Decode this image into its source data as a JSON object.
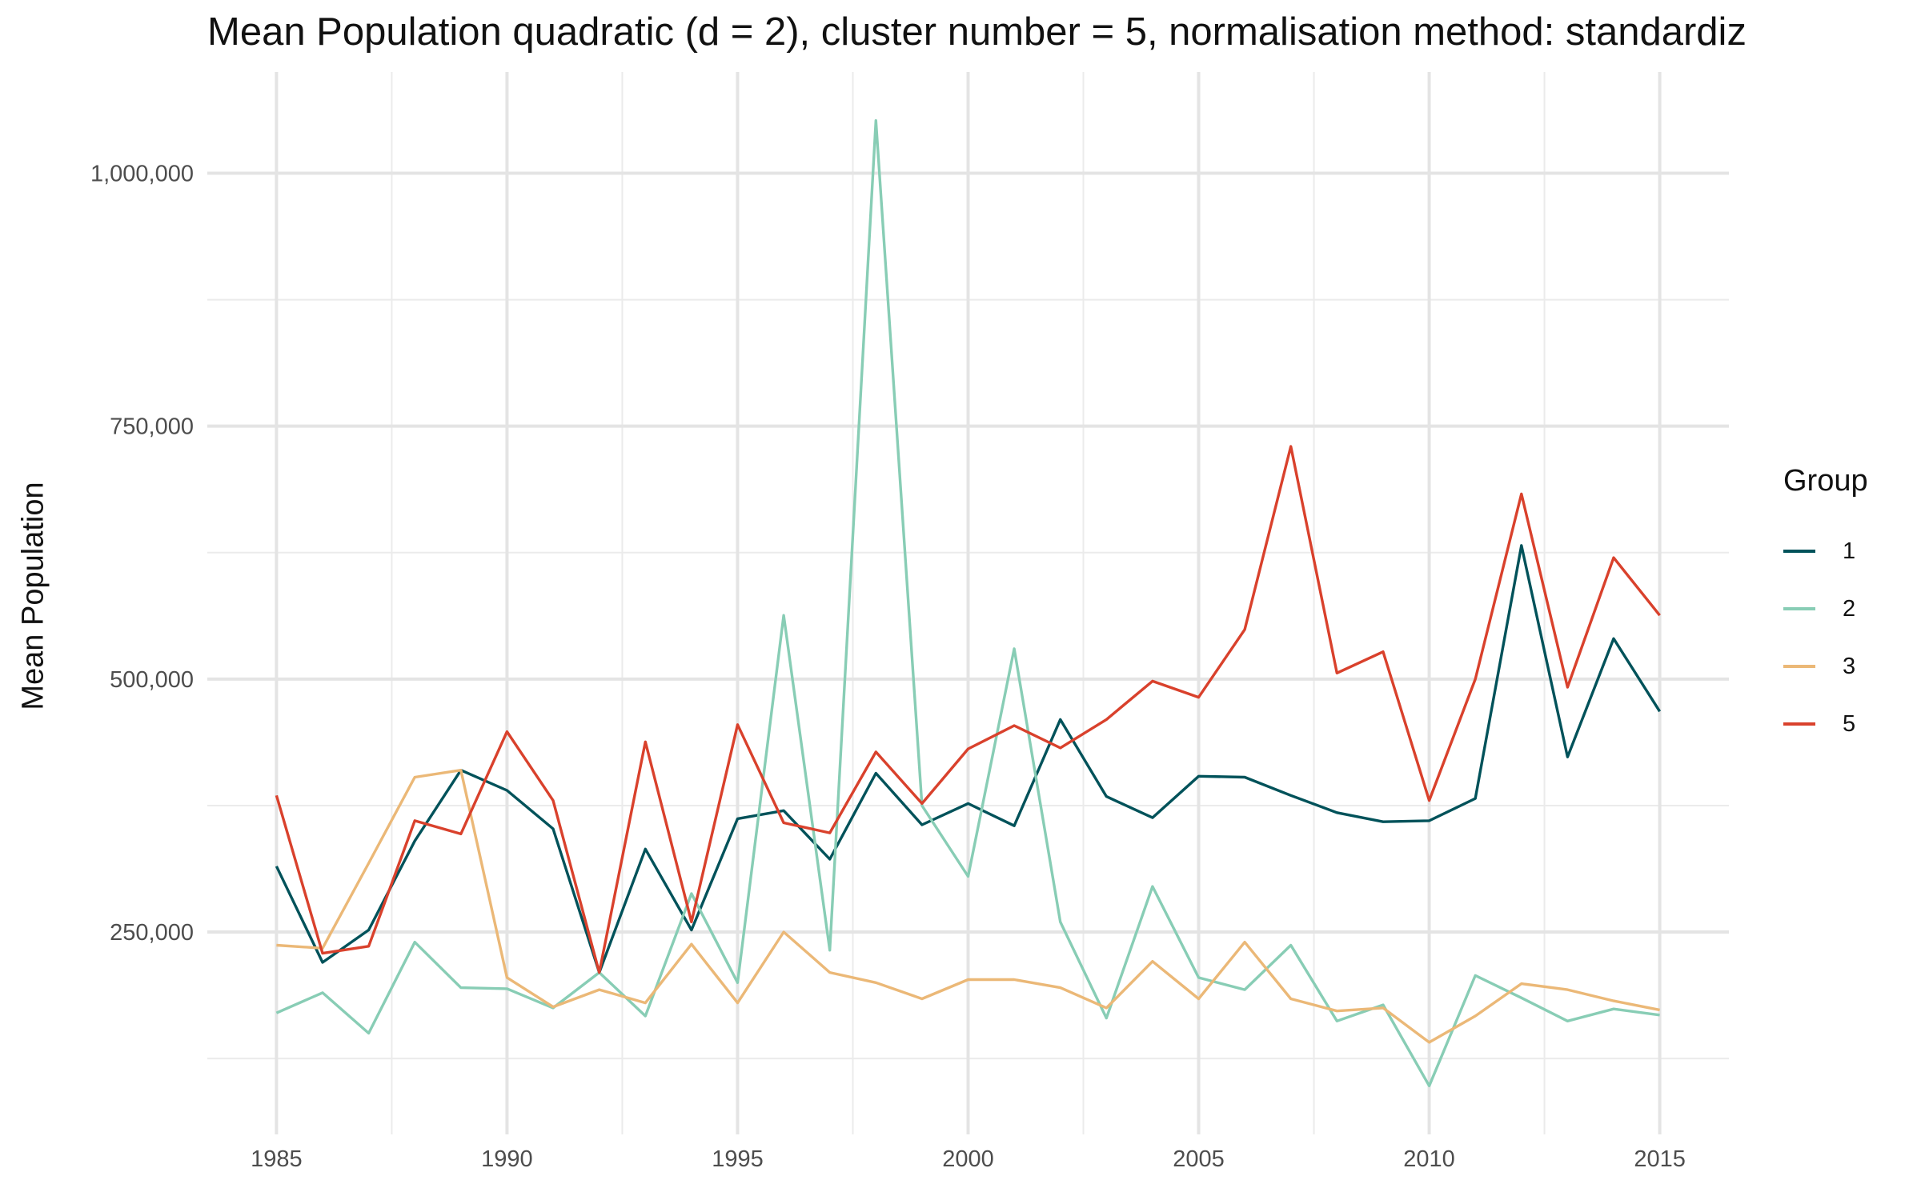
{
  "chart_data": {
    "type": "line",
    "title": "Mean Population quadratic (d = 2), cluster number = 5, normalisation method: standardiz",
    "xlabel": "",
    "ylabel": "Mean Population",
    "xlim": [
      1983.5,
      2016.5
    ],
    "ylim": [
      50000,
      1100000
    ],
    "x_ticks": [
      1985,
      1990,
      1995,
      2000,
      2005,
      2010,
      2015
    ],
    "x_tick_labels": [
      "1985",
      "1990",
      "1995",
      "2000",
      "2005",
      "2010",
      "2015"
    ],
    "x_minor_ticks": [
      1987.5,
      1992.5,
      1997.5,
      2002.5,
      2007.5,
      2012.5
    ],
    "y_ticks": [
      250000,
      500000,
      750000,
      1000000
    ],
    "y_tick_labels": [
      "250,000",
      "500,000",
      "750,000",
      "1,000,000"
    ],
    "y_minor_ticks": [
      125000,
      375000,
      625000,
      875000
    ],
    "grid": true,
    "legend_position": "right",
    "legend_title": "Group",
    "x": [
      1985,
      1986,
      1987,
      1988,
      1989,
      1990,
      1991,
      1992,
      1993,
      1994,
      1995,
      1996,
      1997,
      1998,
      1999,
      2000,
      2001,
      2002,
      2003,
      2004,
      2005,
      2006,
      2007,
      2008,
      2009,
      2010,
      2011,
      2012,
      2013,
      2014,
      2015
    ],
    "series": [
      {
        "name": "1",
        "color": "#00525A",
        "values": [
          315000,
          220000,
          252000,
          340000,
          410000,
          390000,
          352000,
          210000,
          332000,
          252000,
          362000,
          370000,
          322000,
          407000,
          356000,
          377000,
          355000,
          460000,
          384000,
          363000,
          404000,
          403000,
          385000,
          368000,
          359000,
          360000,
          382000,
          632000,
          423000,
          540000,
          468000
        ]
      },
      {
        "name": "2",
        "color": "#88CDB5",
        "values": [
          170000,
          190000,
          150000,
          240000,
          195000,
          194000,
          175000,
          210000,
          167000,
          288000,
          200000,
          563000,
          232000,
          1052000,
          375000,
          305000,
          530000,
          260000,
          165000,
          295000,
          205000,
          193000,
          237000,
          162000,
          178000,
          98000,
          207000,
          185000,
          162000,
          174000,
          168000
        ]
      },
      {
        "name": "3",
        "color": "#EBB877",
        "values": [
          237000,
          234000,
          318000,
          403000,
          410000,
          205000,
          176000,
          193000,
          180000,
          238000,
          180000,
          250000,
          210000,
          200000,
          184000,
          203000,
          203000,
          195000,
          175000,
          221000,
          184000,
          240000,
          184000,
          172000,
          175000,
          141000,
          167000,
          199000,
          193000,
          182000,
          173000
        ]
      },
      {
        "name": "5",
        "color": "#D9412C",
        "values": [
          385000,
          229000,
          236000,
          360000,
          347000,
          448000,
          380000,
          210000,
          438000,
          260000,
          455000,
          358000,
          348000,
          428000,
          377000,
          431000,
          454000,
          432000,
          460000,
          498000,
          482000,
          549000,
          730000,
          506000,
          527000,
          380000,
          500000,
          683000,
          492000,
          620000,
          563000
        ]
      }
    ]
  }
}
